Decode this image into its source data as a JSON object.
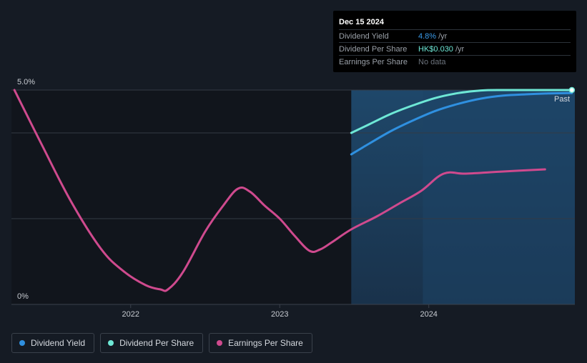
{
  "colors": {
    "background": "#151b24",
    "plot_bg": "#11151c",
    "dividend_yield": "#2f90e0",
    "dividend_per_share": "#6ee8d6",
    "earnings_per_share": "#cf4a8e",
    "grid": "#333a44"
  },
  "tooltip": {
    "date": "Dec 15 2024",
    "rows": [
      {
        "name": "Dividend Yield",
        "value": "4.8%",
        "unit": "/yr"
      },
      {
        "name": "Dividend Per Share",
        "value": "HK$0.030",
        "unit": "/yr"
      },
      {
        "name": "Earnings Per Share",
        "value": "No data",
        "unit": ""
      }
    ]
  },
  "past_label": "Past",
  "legend": [
    {
      "label": "Dividend Yield",
      "color": "#2f90e0",
      "icon": "dot-icon"
    },
    {
      "label": "Dividend Per Share",
      "color": "#6ee8d6",
      "icon": "dot-icon"
    },
    {
      "label": "Earnings Per Share",
      "color": "#cf4a8e",
      "icon": "dot-icon"
    }
  ],
  "chart_data": {
    "type": "line",
    "y_tick_labels": [
      "5.0%",
      "0%"
    ],
    "x_tick_labels": [
      "2022",
      "2023",
      "2024"
    ],
    "x_ticks": [
      2022,
      2023,
      2024
    ],
    "xlim": [
      2021.2,
      2024.98
    ],
    "ylim": [
      0,
      5
    ],
    "shaded_from": 2023.48,
    "past_from": 2023.96,
    "legend_position": "bottom-left",
    "series": [
      {
        "name": "Dividend Yield",
        "x": [
          2023.48,
          2023.6,
          2023.75,
          2023.9,
          2024.05,
          2024.2,
          2024.35,
          2024.5,
          2024.65,
          2024.8,
          2024.96
        ],
        "y": [
          3.5,
          3.75,
          4.05,
          4.3,
          4.52,
          4.68,
          4.8,
          4.87,
          4.9,
          4.92,
          4.93
        ]
      },
      {
        "name": "Dividend Per Share",
        "x": [
          2023.48,
          2023.6,
          2023.75,
          2023.9,
          2024.05,
          2024.2,
          2024.35,
          2024.5,
          2024.65,
          2024.8,
          2024.96
        ],
        "y": [
          4.0,
          4.2,
          4.45,
          4.65,
          4.82,
          4.93,
          4.99,
          5.0,
          5.0,
          5.0,
          5.0
        ]
      },
      {
        "name": "Earnings Per Share",
        "x": [
          2021.22,
          2021.4,
          2021.6,
          2021.8,
          2021.95,
          2022.1,
          2022.2,
          2022.25,
          2022.35,
          2022.5,
          2022.62,
          2022.72,
          2022.8,
          2022.9,
          2023.0,
          2023.1,
          2023.2,
          2023.27,
          2023.35,
          2023.48,
          2023.65,
          2023.8,
          2023.95,
          2024.1,
          2024.25,
          2024.5,
          2024.78
        ],
        "y": [
          5.0,
          3.75,
          2.4,
          1.3,
          0.78,
          0.45,
          0.35,
          0.35,
          0.75,
          1.7,
          2.3,
          2.7,
          2.63,
          2.3,
          2.0,
          1.6,
          1.25,
          1.28,
          1.45,
          1.75,
          2.05,
          2.35,
          2.65,
          3.05,
          3.05,
          3.1,
          3.15
        ]
      }
    ]
  }
}
